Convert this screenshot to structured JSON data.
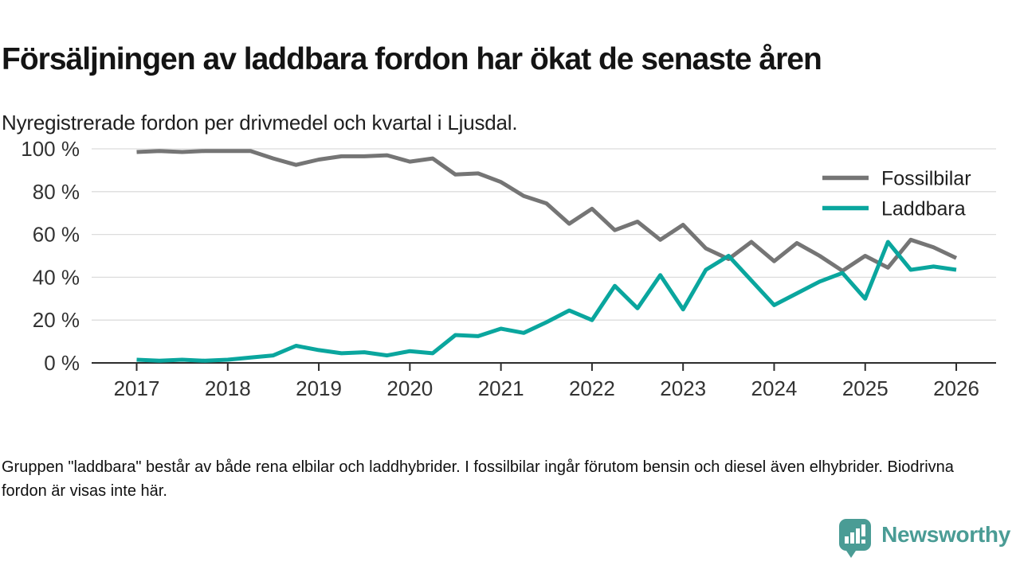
{
  "title": "Försäljningen av laddbara fordon har ökat de senaste åren",
  "subtitle": "Nyregistrerade fordon per drivmedel och kvartal i Ljusdal.",
  "footnote": "Gruppen \"laddbara\" består av både rena elbilar och laddhybrider. I fossilbilar ingår förutom bensin och diesel även elhybrider. Biodrivna fordon är visas inte här.",
  "brand": {
    "name": "Newsworthy",
    "color": "#4a9c95",
    "icon": "speech-bubble-bar-chart-icon"
  },
  "chart_data": {
    "type": "line",
    "unit": "%",
    "x_frequency": "quarterly",
    "grid": "horizontal",
    "legend_position": "top-right",
    "ylim": [
      0,
      100
    ],
    "yticks": [
      {
        "value": 0,
        "label": "0 %"
      },
      {
        "value": 20,
        "label": "20 %"
      },
      {
        "value": 40,
        "label": "40 %"
      },
      {
        "value": 60,
        "label": "60 %"
      },
      {
        "value": 80,
        "label": "80 %"
      },
      {
        "value": 100,
        "label": "100 %"
      }
    ],
    "xticks": [
      "2017",
      "2018",
      "2019",
      "2020",
      "2021",
      "2022",
      "2023",
      "2024",
      "2025",
      "2026"
    ],
    "categories": [
      "2017 Q1",
      "2017 Q2",
      "2017 Q3",
      "2017 Q4",
      "2018 Q1",
      "2018 Q2",
      "2018 Q3",
      "2018 Q4",
      "2019 Q1",
      "2019 Q2",
      "2019 Q3",
      "2019 Q4",
      "2020 Q1",
      "2020 Q2",
      "2020 Q3",
      "2020 Q4",
      "2021 Q1",
      "2021 Q2",
      "2021 Q3",
      "2021 Q4",
      "2022 Q1",
      "2022 Q2",
      "2022 Q3",
      "2022 Q4",
      "2023 Q1",
      "2023 Q2",
      "2023 Q3",
      "2023 Q4",
      "2024 Q1",
      "2024 Q2",
      "2024 Q3",
      "2024 Q4",
      "2025 Q1",
      "2025 Q2",
      "2025 Q3",
      "2025 Q4",
      "2026 Q1"
    ],
    "series": [
      {
        "name": "Fossilbilar",
        "color": "#757575",
        "values": [
          98.5,
          99,
          98.5,
          99,
          99,
          99,
          95.5,
          92.5,
          95,
          96.5,
          96.5,
          97,
          94,
          95.5,
          88,
          88.5,
          84.5,
          78,
          74.5,
          65,
          72,
          62,
          66,
          57.5,
          64.5,
          53.5,
          48.5,
          56.5,
          47.5,
          56,
          50,
          43,
          50,
          44.5,
          57.5,
          54,
          49
        ]
      },
      {
        "name": "Laddbara",
        "color": "#0aa69e",
        "values": [
          1.5,
          1,
          1.5,
          1,
          1.5,
          2.5,
          3.5,
          8,
          6,
          4.5,
          5,
          3.5,
          5.5,
          4.5,
          13,
          12.5,
          16,
          14,
          19,
          24.5,
          20,
          36,
          25.5,
          41,
          25,
          43.5,
          50,
          38.5,
          27,
          32.5,
          38,
          42,
          30,
          56.5,
          43.5,
          45,
          43.5
        ]
      }
    ]
  }
}
